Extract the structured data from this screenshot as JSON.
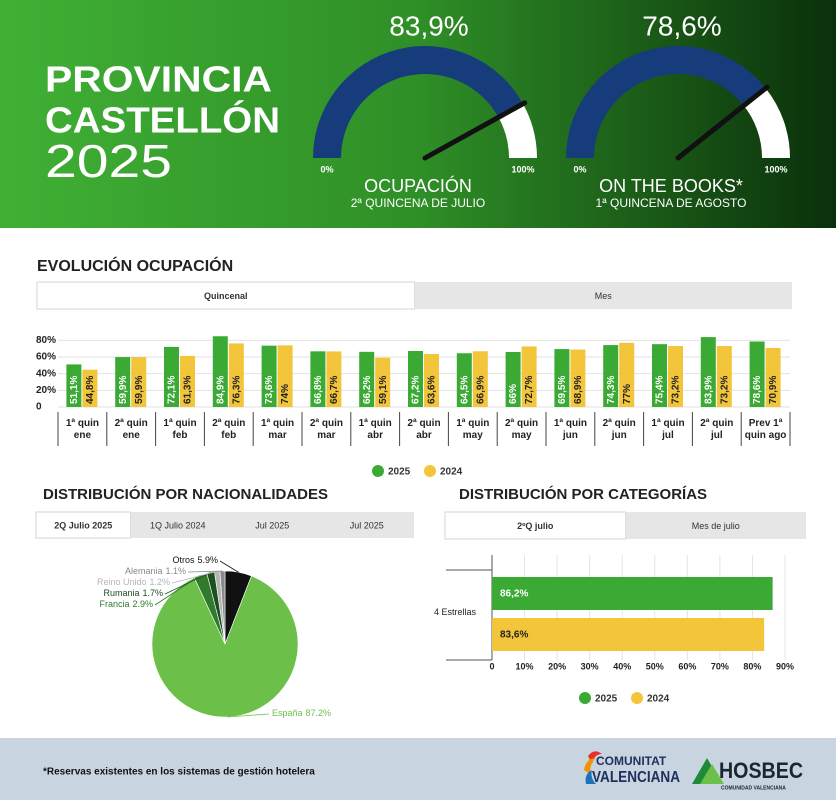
{
  "header": {
    "title": [
      "PROVINCIA",
      "CASTELLÓN",
      "2025"
    ]
  },
  "chart_data": [
    {
      "type": "gauge",
      "title": "OCUPACIÓN",
      "subtitle": "2ª QUINCENA DE JULIO",
      "values": [
        83.9
      ],
      "value_labels": [
        "83,9%"
      ],
      "color": "#173c7c",
      "ylim": [
        0,
        100
      ],
      "yticks": [
        {
          "value": 0,
          "label": "0%"
        },
        {
          "value": 100,
          "label": "100%"
        }
      ]
    },
    {
      "type": "gauge",
      "title": "ON THE BOOKS*",
      "subtitle": "1ª QUINCENA DE AGOSTO",
      "values": [
        78.6
      ],
      "value_labels": [
        "78,6%"
      ],
      "color": "#173c7c",
      "ylim": [
        0,
        100
      ],
      "yticks": [
        {
          "value": 0,
          "label": "0%"
        },
        {
          "value": 100,
          "label": "100%"
        }
      ]
    },
    {
      "type": "bar",
      "title": "EVOLUCIÓN OCUPACIÓN",
      "tabs": [
        "Quincenal",
        "Mes"
      ],
      "categories": [
        "1ª quin ene",
        "2ª quin ene",
        "1ª quin feb",
        "2ª quin feb",
        "1ª quin mar",
        "2ª quin mar",
        "1ª quin abr",
        "2ª quin abr",
        "1ª quin may",
        "2ª quin may",
        "1ª quin jun",
        "2ª quin jun",
        "1ª quin jul",
        "2ª quin jul",
        "Prev 1ª quin ago"
      ],
      "series": [
        {
          "name": "2025",
          "color": "#3aaa35",
          "values": [
            51.1,
            59.9,
            72.1,
            84.9,
            73.6,
            66.8,
            66.2,
            67.2,
            64.5,
            66,
            69.5,
            74.3,
            75.4,
            83.9,
            78.6
          ],
          "value_labels": [
            "51,1%",
            "59,9%",
            "72,1%",
            "84,9%",
            "73,6%",
            "66,8%",
            "66,2%",
            "67,2%",
            "64,5%",
            "66%",
            "69,5%",
            "74,3%",
            "75,4%",
            "83,9%",
            "78,6%"
          ]
        },
        {
          "name": "2024",
          "color": "#f3c53a",
          "values": [
            44.8,
            59.9,
            61.3,
            76.3,
            74,
            66.7,
            59.1,
            63.6,
            66.9,
            72.7,
            68.9,
            77,
            73.2,
            73.2,
            70.9
          ],
          "value_labels": [
            "44,8%",
            "59,9%",
            "61,3%",
            "76,3%",
            "74%",
            "66,7%",
            "59,1%",
            "63,6%",
            "66,9%",
            "72,7%",
            "68,9%",
            "77%",
            "73,2%",
            "73,2%",
            "70,9%"
          ]
        }
      ],
      "ylim": [
        0,
        90
      ],
      "yticks": [
        0,
        {
          "value": 20,
          "label": "20%"
        },
        {
          "value": 40,
          "label": "40%"
        },
        {
          "value": 60,
          "label": "60%"
        },
        {
          "value": 80,
          "label": "80%"
        }
      ],
      "grid": true
    },
    {
      "type": "pie",
      "title": "DISTRIBUCIÓN POR NACIONALIDADES",
      "tabs": [
        "2Q Julio 2025",
        "1Q Julio 2024",
        "Jul 2025",
        "Jul 2025"
      ],
      "categories": [
        "Otros",
        "España",
        "Francia",
        "Rumania",
        "Reino Unido",
        "Alemania"
      ],
      "values": [
        5.9,
        87.2,
        2.9,
        1.7,
        1.2,
        1.1
      ],
      "value_labels": [
        "5.9%",
        "87.2%",
        "2.9%",
        "1.7%",
        "1.2%",
        "1.1%"
      ],
      "colors": [
        "#111111",
        "#6cc04a",
        "#2f7a2c",
        "#1d4f1f",
        "#b5b5b5",
        "#8a8a8a"
      ]
    },
    {
      "type": "hbar",
      "title": "DISTRIBUCIÓN POR CATEGORÍAS",
      "tabs": [
        "2ºQ julio",
        "Mes de julio"
      ],
      "categories": [
        "4 Estrellas"
      ],
      "series": [
        {
          "name": "2025",
          "color": "#3aaa35",
          "values": [
            86.2
          ],
          "value_labels": [
            "86,2%"
          ]
        },
        {
          "name": "2024",
          "color": "#f3c53a",
          "values": [
            83.6
          ],
          "value_labels": [
            "83,6%"
          ]
        }
      ],
      "xlim": [
        0,
        90
      ],
      "xticks": [
        0,
        {
          "value": 10,
          "label": "10%"
        },
        {
          "value": 20,
          "label": "20%"
        },
        {
          "value": 30,
          "label": "30%"
        },
        {
          "value": 40,
          "label": "40%"
        },
        {
          "value": 50,
          "label": "50%"
        },
        {
          "value": 60,
          "label": "60%"
        },
        {
          "value": 70,
          "label": "70%"
        },
        {
          "value": 80,
          "label": "80%"
        },
        {
          "value": 90,
          "label": "90%"
        }
      ],
      "grid": true
    }
  ],
  "footer": {
    "note": "*Reservas existentes en los sistemas de gestión hotelera",
    "logo_gva": [
      "COMUNITAT",
      "VALENCIANA"
    ],
    "logo_hosbec": "HOSBEC",
    "logo_hosbec_tagline": "COMUNIDAD VALENCIANA"
  }
}
